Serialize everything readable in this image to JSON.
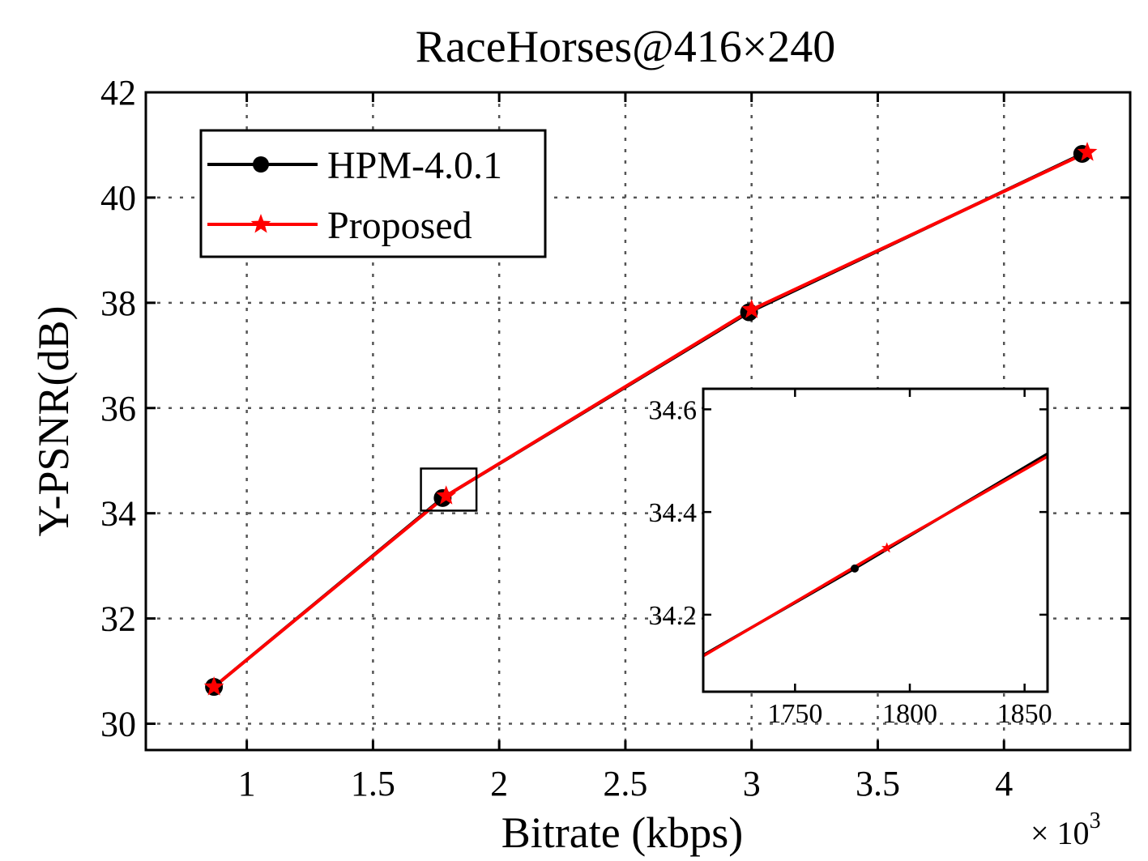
{
  "chart_data": [
    {
      "type": "line",
      "title": "RaceHorses@416×240",
      "xlabel": "Bitrate (kbps)",
      "ylabel": "Y-PSNR(dB)",
      "x_multiplier_label": "× 10",
      "x_multiplier_exp": "3",
      "xlim": [
        0.6,
        4.5
      ],
      "ylim": [
        29.5,
        42
      ],
      "xticks": [
        1,
        1.5,
        2,
        2.5,
        3,
        3.5,
        4
      ],
      "xtick_labels": [
        "1",
        "1.5",
        "2",
        "2.5",
        "3",
        "3.5",
        "4"
      ],
      "yticks": [
        30,
        32,
        34,
        36,
        38,
        40,
        42
      ],
      "ytick_labels": [
        "30",
        "32",
        "34",
        "36",
        "38",
        "40",
        "42"
      ],
      "grid": true,
      "legend_position": "top-left",
      "series": [
        {
          "name": "HPM-4.0.1",
          "color": "#000000",
          "marker": "circle",
          "x": [
            0.87,
            1.776,
            2.99,
            4.31
          ],
          "y": [
            30.7,
            34.29,
            37.82,
            40.83
          ]
        },
        {
          "name": "Proposed",
          "color": "#ff0000",
          "marker": "star",
          "x": [
            0.87,
            1.79,
            3.0,
            4.33
          ],
          "y": [
            30.7,
            34.33,
            37.87,
            40.86
          ]
        }
      ],
      "zoom_box": {
        "xlim": [
          1.69,
          1.91
        ],
        "ylim": [
          34.05,
          34.85
        ]
      }
    },
    {
      "type": "line",
      "role": "inset",
      "xlim": [
        1710,
        1860
      ],
      "ylim": [
        34.05,
        34.64
      ],
      "xticks": [
        1750,
        1800,
        1850
      ],
      "xtick_labels": [
        "1750",
        "1800",
        "1850"
      ],
      "yticks": [
        34.2,
        34.4,
        34.6
      ],
      "ytick_labels": [
        "34.2",
        "34.4",
        "34.6"
      ],
      "series": [
        {
          "name": "HPM-4.0.1",
          "color": "#000000",
          "marker": "circle",
          "x": [
            1600,
            1776,
            1900
          ],
          "y": [
            33.84,
            34.29,
            34.62
          ]
        },
        {
          "name": "Proposed",
          "color": "#ff0000",
          "marker": "star",
          "x": [
            1600,
            1790,
            1900
          ],
          "y": [
            33.83,
            34.33,
            34.61
          ]
        }
      ],
      "marker_points": [
        {
          "series": 0,
          "x": 1776,
          "y": 34.29
        },
        {
          "series": 1,
          "x": 1790,
          "y": 34.33
        }
      ]
    }
  ]
}
